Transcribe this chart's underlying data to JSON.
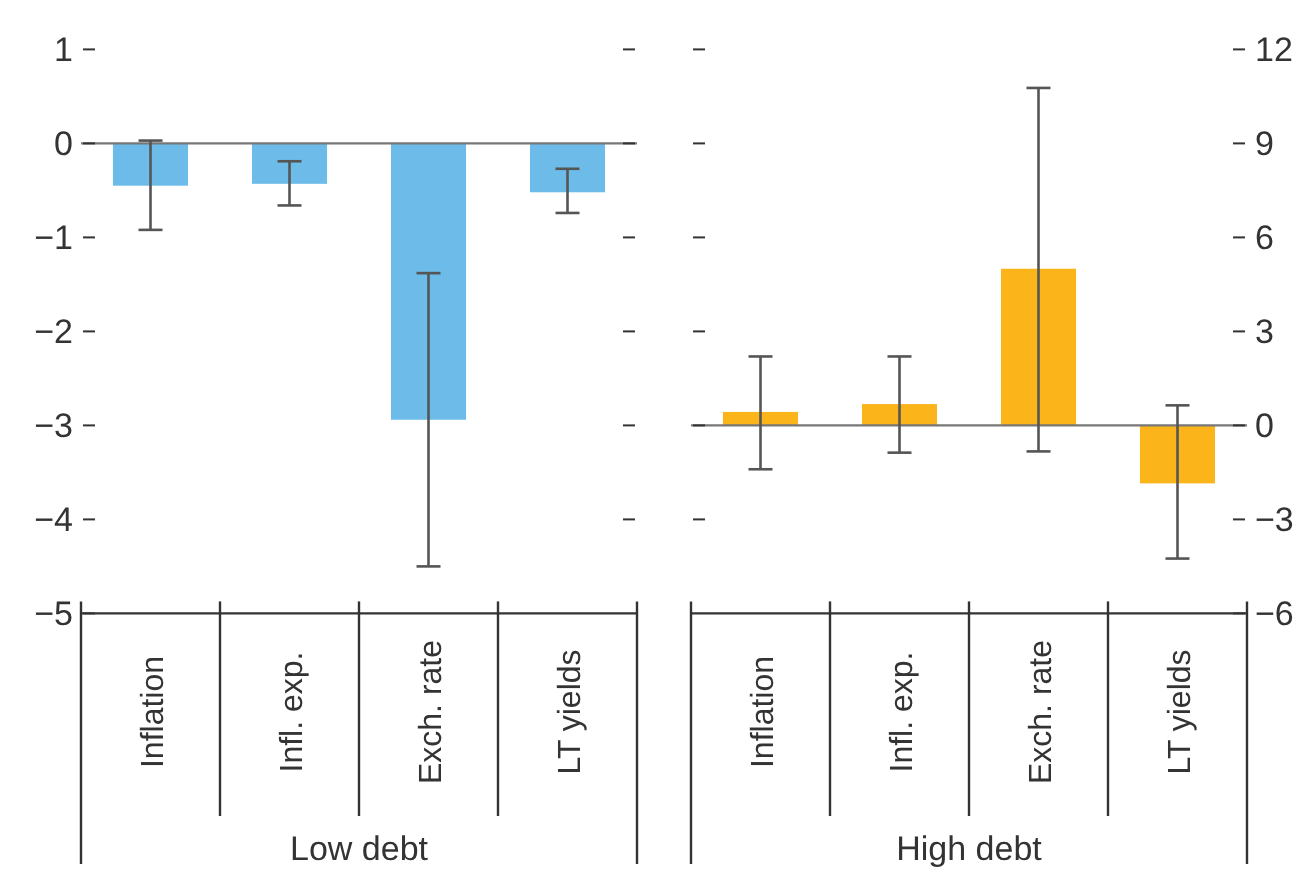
{
  "chart_data": [
    {
      "type": "bar",
      "xlabel": "Low debt",
      "categories": [
        "Inflation",
        "Infl. exp.",
        "Exch. rate",
        "LT yields"
      ],
      "series": [
        {
          "color": "#6cbbe8",
          "values": [
            -0.45,
            -0.43,
            -2.94,
            -0.52
          ],
          "errors": [
            [
              -0.92,
              0.03
            ],
            [
              -0.66,
              -0.19
            ],
            [
              -4.5,
              -1.38
            ],
            [
              -0.74,
              -0.27
            ]
          ]
        }
      ],
      "ylim": [
        -5,
        1
      ],
      "yticks": [
        {
          "value": -5,
          "label": "−5"
        },
        {
          "value": -4,
          "label": "−4"
        },
        {
          "value": -3,
          "label": "−3"
        },
        {
          "value": -2,
          "label": "−2"
        },
        {
          "value": -1,
          "label": "−1"
        },
        0,
        1
      ]
    },
    {
      "type": "bar",
      "xlabel": "High debt",
      "categories": [
        "Inflation",
        "Infl. exp.",
        "Exch. rate",
        "LT yields"
      ],
      "series": [
        {
          "color": "#fbb41a",
          "axis": "y2",
          "values": [
            0.43,
            0.68,
            5.0,
            -1.85
          ],
          "errors": [
            [
              -1.4,
              2.2
            ],
            [
              -0.87,
              2.2
            ],
            [
              -0.83,
              10.77
            ],
            [
              -4.25,
              0.64
            ]
          ]
        }
      ],
      "y2lim": [
        -6,
        12
      ],
      "y2ticks": [
        {
          "value": -6,
          "label": "−6"
        },
        {
          "value": -3,
          "label": "−3"
        },
        0,
        3,
        6,
        9,
        12
      ]
    }
  ]
}
